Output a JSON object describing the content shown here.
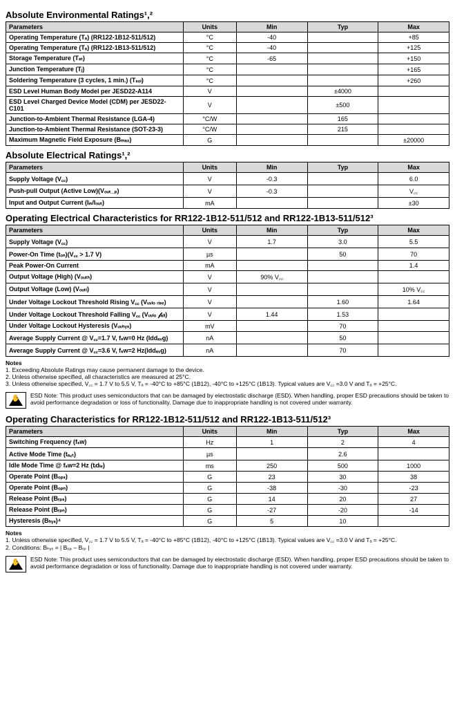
{
  "sections": {
    "env": {
      "title": "Absolute Environmental Ratings¹,²"
    },
    "elec_abs": {
      "title": "Absolute Electrical Ratings¹,²"
    },
    "op_elec": {
      "title": "Operating Electrical Characteristics for RR122-1B12-511/512 and RR122-1B13-511/512³"
    },
    "op_char": {
      "title": "Operating Characteristics for RR122-1B12-511/512 and RR122-1B13-511/512³"
    }
  },
  "headers": {
    "param": "Parameters",
    "units": "Units",
    "min": "Min",
    "typ": "Typ",
    "max": "Max"
  },
  "env_rows": [
    {
      "p": "Operating Temperature (Tₐ) (RR122-1B12-511/512)",
      "u": "°C",
      "min": "-40",
      "typ": "",
      "max": "+85"
    },
    {
      "p": "Operating Temperature (Tₐ) (RR122-1B13-511/512)",
      "u": "°C",
      "min": "-40",
      "typ": "",
      "max": "+125"
    },
    {
      "p": "Storage Temperature (Tₛₜ)",
      "u": "°C",
      "min": "-65",
      "typ": "",
      "max": "+150"
    },
    {
      "p": "Junction Temperature (Tⱼ)",
      "u": "°C",
      "min": "",
      "typ": "",
      "max": "+165"
    },
    {
      "p": "Soldering Temperature (3 cycles, 1 min.) (Tₛₒₗ)",
      "u": "°C",
      "min": "",
      "typ": "",
      "max": "+260"
    },
    {
      "p": "ESD Level Human Body Model per JESD22-A114",
      "u": "V",
      "min": "",
      "typ": "±4000",
      "max": ""
    },
    {
      "p": "ESD Level Charged Device Model (CDM) per JESD22-C101",
      "u": "V",
      "min": "",
      "typ": "±500",
      "max": ""
    },
    {
      "p": "Junction-to-Ambient Thermal Resistance (LGA-4)",
      "u": "°C/W",
      "min": "",
      "typ": "165",
      "max": ""
    },
    {
      "p": "Junction-to-Ambient Thermal Resistance (SOT-23-3)",
      "u": "°C/W",
      "min": "",
      "typ": "215",
      "max": ""
    },
    {
      "p": "Maximum Magnetic Field Exposure (Bₘₐₓ)",
      "u": "G",
      "min": "",
      "typ": "",
      "max": "±20000"
    }
  ],
  "abs_rows": [
    {
      "p": "Supply Voltage (V꜀꜀)",
      "u": "V",
      "min": "-0.3",
      "typ": "",
      "max": "6.0"
    },
    {
      "p": "Push-pull Output (Active Low)(Vₒᵤₜ_ₚ)",
      "u": "V",
      "min": "-0.3",
      "typ": "",
      "max": "V꜀꜀"
    },
    {
      "p": "Input and Output Current (Iᵢₙ/Iₒᵤₜ)",
      "u": "mA",
      "min": "",
      "typ": "",
      "max": "±30"
    }
  ],
  "opel_rows": [
    {
      "p": "Supply Voltage (V꜀꜀)",
      "u": "V",
      "min": "1.7",
      "typ": "3.0",
      "max": "5.5"
    },
    {
      "p": "Power-On Time (tₒₙ)(V꜀꜀ > 1.7 V)",
      "u": "µs",
      "min": "",
      "typ": "50",
      "max": "70"
    },
    {
      "p": "Peak Power-On Current",
      "u": "mA",
      "min": "",
      "typ": "",
      "max": "1.4"
    },
    {
      "p": "Output Voltage (High) (Vₒᵤₜₕ)",
      "u": "V",
      "min": "90% V꜀꜀",
      "typ": "",
      "max": ""
    },
    {
      "p": "Output Voltage (Low) (Vₒᵤₜₗ)",
      "u": "V",
      "min": "",
      "typ": "",
      "max": "10% V꜀꜀"
    },
    {
      "p": "Under Voltage Lockout Threshold Rising V꜀꜀ (Vᵤᵥₗₒ ᵣᵢₛₑ)",
      "u": "V",
      "min": "",
      "typ": "1.60",
      "max": "1.64"
    },
    {
      "p": "Under Voltage Lockout Threshold Falling V꜀꜀ (Vᵤᵥₗₒ 𝒻ₐₗₗ)",
      "u": "V",
      "min": "1.44",
      "typ": "1.53",
      "max": ""
    },
    {
      "p": "Under Voltage Lockout Hysteresis (Vᵤᵥₕᵧₛ)",
      "u": "mV",
      "min": "",
      "typ": "70",
      "max": ""
    },
    {
      "p": "Average Supply Current @ V꜀꜀=1.7 V, fₛw=0 Hz (Iddₐᵥg)",
      "u": "nA",
      "min": "",
      "typ": "50",
      "max": ""
    },
    {
      "p": "Average Supply Current @ V꜀꜀=3.6 V, fₛw=2 Hz(Iddₐᵥg)",
      "u": "nA",
      "min": "",
      "typ": "70",
      "max": ""
    }
  ],
  "opch_rows": [
    {
      "p": "Switching Frequency (fₛw)",
      "u": "Hz",
      "min": "1",
      "typ": "2",
      "max": "4"
    },
    {
      "p": "Active Mode Time (tₐ꜀ₜ)",
      "u": "µs",
      "min": "",
      "typ": "2.6",
      "max": ""
    },
    {
      "p": "Idle Mode Time @ fₛw=2 Hz (tᵢdₗₑ)",
      "u": "ms",
      "min": "250",
      "typ": "500",
      "max": "1000"
    },
    {
      "p": "Operate Point (Bₒₚₛ)",
      "u": "G",
      "min": "23",
      "typ": "30",
      "max": "38"
    },
    {
      "p": "Operate Point (Bₒₚₙ)",
      "u": "G",
      "min": "-38",
      "typ": "-30",
      "max": "-23"
    },
    {
      "p": "Release Point (Bᵣₚₛ)",
      "u": "G",
      "min": "14",
      "typ": "20",
      "max": "27"
    },
    {
      "p": "Release Point (Bᵣₚₙ)",
      "u": "G",
      "min": "-27",
      "typ": "-20",
      "max": "-14"
    },
    {
      "p": "Hysteresis (Bₕᵧₛ)⁴",
      "u": "G",
      "min": "5",
      "typp": "",
      "typ": "10",
      "max": ""
    }
  ],
  "notes1": {
    "hd": "Notes",
    "l1": "1. Exceeding Absolute Ratings may cause permanent damage to the device.",
    "l2": "2. Unless otherwise specified, all characteristics are measured at 25°C.",
    "l3": "3. Unless otherwise specified, V꜀꜀ = 1.7 V to 5.5 V, Tₐ = -40°C to +85°C (1B12), -40°C to +125°C (1B13). Typical values are V꜀꜀ =3.0 V and Tₐ = +25°C."
  },
  "esd1": "ESD Note: This product uses semiconductors that can be damaged by electrostatic discharge (ESD). When handling, proper ESD precautions should be taken to avoid performance degradation or loss of functionality. Damage due to inappropriate handling is not covered under warranty.",
  "notes2": {
    "hd": "Notes",
    "l1": "1. Unless otherwise specified, V꜀꜀ = 1.7 V to 5.5 V, Tₐ = -40°C to +85°C (1B12), -40°C to +125°C (1B13). Typical values are V꜀꜀ =3.0 V and Tₐ = +25°C.",
    "l2": "2. Conditions: Bₕᵧₛ = | Bₒₚ – Bᵣₚ |"
  },
  "esd2": "ESD Note: This product uses semiconductors that can be damaged by electrostatic discharge (ESD). When handling, proper ESD precautions should be taken to avoid performance degradation or loss of functionality. Damage due to inappropriate handling is not covered under warranty."
}
